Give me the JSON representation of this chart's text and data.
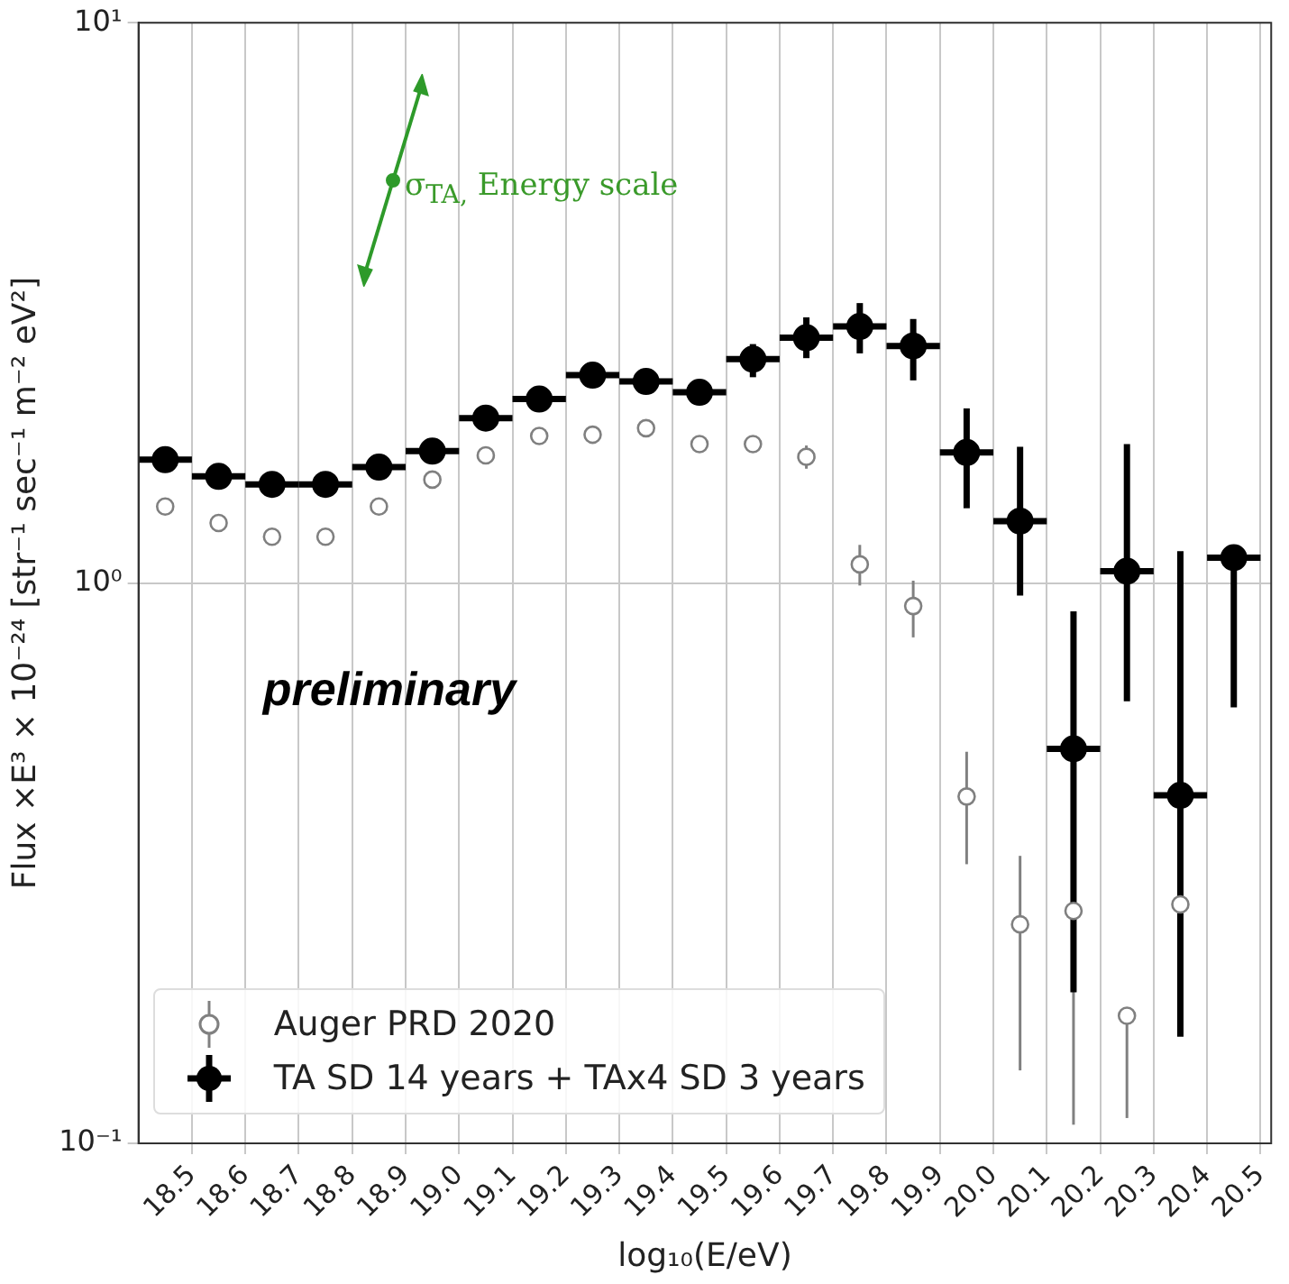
{
  "chart_data": {
    "type": "scatter",
    "xlabel": "log₁₀(E/eV)",
    "ylabel": "Flux ×E³ × 10⁻²⁴ [str⁻¹ sec⁻¹ m⁻² eV²]",
    "log": "y",
    "xlim": [
      18.4,
      20.52
    ],
    "xticks": [
      18.5,
      18.6,
      18.7,
      18.8,
      18.9,
      {
        "value": 19,
        "label": "19.0"
      },
      19.1,
      19.2,
      19.3,
      19.4,
      19.5,
      19.6,
      19.7,
      19.8,
      19.9,
      {
        "value": 20,
        "label": "20.0"
      },
      20.1,
      20.2,
      20.3,
      20.4,
      20.5
    ],
    "ylim": [
      0.1,
      10
    ],
    "yticks": [
      {
        "value": 0.1,
        "label": "10⁻¹"
      },
      {
        "value": 1,
        "label": "10⁰"
      },
      {
        "value": 10,
        "label": "10¹"
      }
    ],
    "grid": true,
    "legend": "bottom left",
    "marker": "circle",
    "annotations": [
      "σ$_{TA,}$ Energy scale",
      "preliminary"
    ],
    "x": [
      18.45,
      18.55,
      18.65,
      18.75,
      18.85,
      18.95,
      19.05,
      19.15,
      19.25,
      19.35,
      19.45,
      19.55,
      19.65,
      19.75,
      19.85,
      19.95,
      20.05,
      20.15,
      20.25,
      20.35,
      20.45
    ],
    "series": [
      {
        "name": "Auger PRD 2020",
        "color": "#808080",
        "values": [
          1.37,
          1.28,
          1.21,
          1.21,
          1.37,
          1.53,
          1.69,
          1.83,
          1.84,
          1.89,
          1.77,
          1.77,
          1.68,
          1.08,
          0.91,
          0.416,
          0.246,
          0.26,
          0.169,
          0.267,
          null
        ],
        "errors": [
          null,
          null,
          null,
          null,
          null,
          null,
          null,
          null,
          null,
          null,
          null,
          null,
          [
            1.6,
            1.76
          ],
          [
            0.99,
            1.17
          ],
          [
            0.8,
            1.01
          ],
          [
            0.315,
            0.5
          ],
          [
            0.135,
            0.326
          ],
          [
            0.108,
            0.26
          ],
          [
            0.111,
            0.169
          ],
          [
            0.175,
            0.267
          ],
          null
        ]
      },
      {
        "name": "TA SD 14 years + TAx4 SD 3 years",
        "color": "#000000",
        "values": [
          1.66,
          1.55,
          1.5,
          1.5,
          1.61,
          1.72,
          1.97,
          2.13,
          2.35,
          2.29,
          2.19,
          2.51,
          2.74,
          2.87,
          2.65,
          1.71,
          1.29,
          0.506,
          1.05,
          0.418,
          1.11
        ],
        "errors": [
          null,
          null,
          null,
          null,
          null,
          null,
          null,
          null,
          null,
          null,
          null,
          [
            2.33,
            2.67
          ],
          [
            2.52,
            2.98
          ],
          [
            2.57,
            3.16
          ],
          [
            2.3,
            2.96
          ],
          [
            1.36,
            2.05
          ],
          [
            0.95,
            1.75
          ],
          [
            0.186,
            0.89
          ],
          [
            0.615,
            1.77
          ],
          [
            0.155,
            1.14
          ],
          [
            0.6,
            1.11
          ]
        ],
        "xerrors": [
          0.05,
          0.05,
          0.05,
          0.05,
          0.05,
          0.05,
          0.05,
          0.05,
          0.05,
          0.05,
          0.05,
          0.05,
          0.05,
          0.05,
          0.05,
          0.05,
          0.05,
          0.05,
          0.05,
          0.05,
          0.05
        ]
      }
    ]
  }
}
